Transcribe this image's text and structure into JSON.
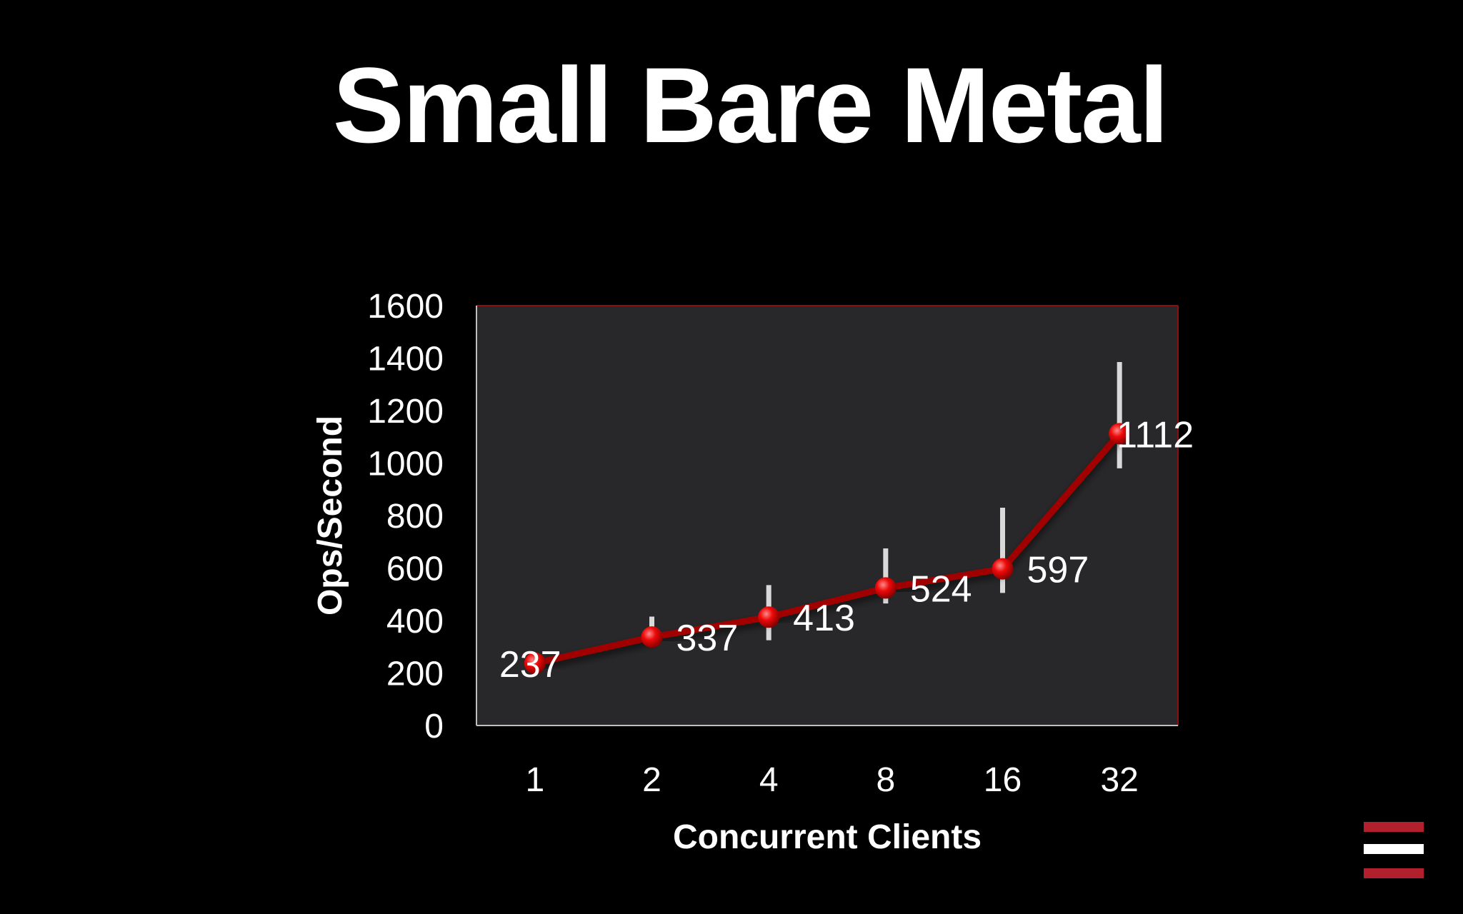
{
  "slide": {
    "title": "Small Bare Metal"
  },
  "colors": {
    "background": "#000000",
    "plot_area": "#28282a",
    "plot_border": "#8a1010",
    "series_line": "#a00000",
    "marker": "#e00000",
    "error_bar": "#d9d9d9",
    "text": "#ffffff",
    "logo_red": "#b2202e",
    "logo_white": "#ffffff"
  },
  "logo": {
    "icon": "three-stripe-logo-icon"
  },
  "chart_data": {
    "type": "line",
    "title": "",
    "xlabel": "Concurrent Clients",
    "ylabel": "Ops/Second",
    "categories": [
      "1",
      "2",
      "4",
      "8",
      "16",
      "32"
    ],
    "series": [
      {
        "values": [
          237,
          337,
          413,
          524,
          597,
          1112
        ],
        "data_labels": [
          "237",
          "337",
          "413",
          "524",
          "597",
          "1112"
        ],
        "error_low": [
          235,
          315,
          325,
          465,
          505,
          980
        ],
        "error_high": [
          270,
          415,
          535,
          675,
          830,
          1385
        ]
      }
    ],
    "ylim": [
      0,
      1600
    ],
    "yticks": [
      "0",
      "200",
      "400",
      "600",
      "800",
      "1000",
      "1200",
      "1400",
      "1600"
    ],
    "grid": false,
    "legend": "none",
    "markers": true,
    "error_bars": true,
    "data_label_position": "right"
  }
}
